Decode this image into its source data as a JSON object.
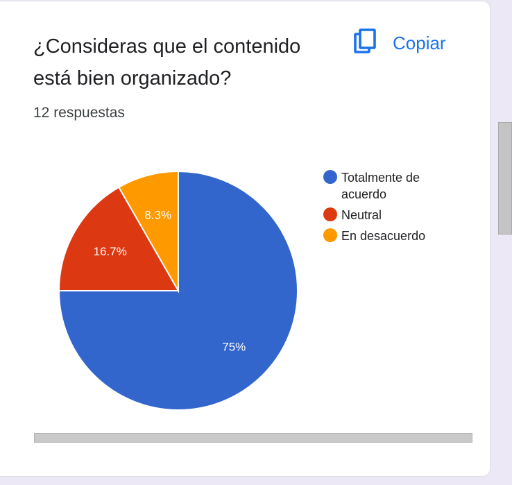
{
  "card": {
    "question": "¿Consideras que el contenido está bien organizado?",
    "copy_label": "Copiar",
    "response_count": "12 respuestas"
  },
  "colors": {
    "accent": "#1a73e8"
  },
  "icons": {
    "copy": "copy-icon"
  },
  "chart_data": {
    "type": "pie",
    "categories": [
      "Totalmente de acuerdo",
      "Neutral",
      "En desacuerdo"
    ],
    "values": [
      75,
      16.7,
      8.3
    ],
    "labels": [
      "75%",
      "16.7%",
      "8.3%"
    ],
    "colors": [
      "#3366cc",
      "#dc3912",
      "#ff9900"
    ],
    "legend_position": "right"
  }
}
